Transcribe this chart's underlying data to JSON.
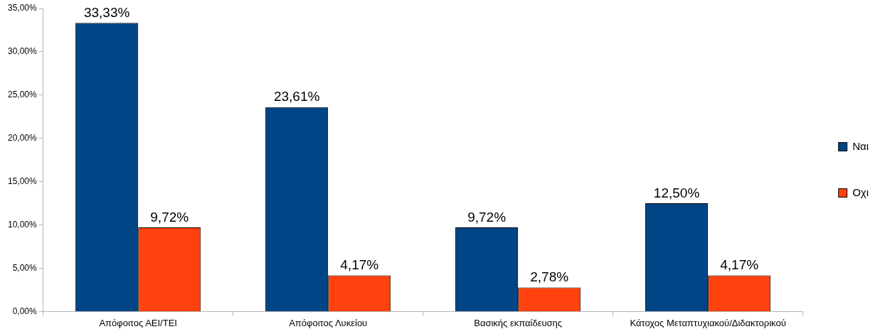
{
  "chart_data": {
    "type": "bar",
    "categories": [
      "Απόφοιτος ΑΕΙ/ΤΕΙ",
      "Απόφοιτος Λυκείου",
      "Βασικής εκπαίδευσης",
      "Κάτοχος Μεταπτυχιακού/Διδακτορικού"
    ],
    "series": [
      {
        "name": "Ναι",
        "color": "#004586",
        "values": [
          33.33,
          23.61,
          9.72,
          12.5
        ],
        "value_labels": [
          "33,33%",
          "23,61%",
          "9,72%",
          "12,50%"
        ]
      },
      {
        "name": "Οχι",
        "color": "#ff420e",
        "values": [
          9.72,
          4.17,
          2.78,
          4.17
        ],
        "value_labels": [
          "9,72%",
          "4,17%",
          "2,78%",
          "4,17%"
        ]
      }
    ],
    "ylim": [
      0,
      35
    ],
    "yticks": [
      {
        "value": 0,
        "label": "0,00%"
      },
      {
        "value": 5,
        "label": "5,00%"
      },
      {
        "value": 10,
        "label": "10,00%"
      },
      {
        "value": 15,
        "label": "15,00%"
      },
      {
        "value": 20,
        "label": "20,00%"
      },
      {
        "value": 25,
        "label": "25,00%"
      },
      {
        "value": 30,
        "label": "30,00%"
      },
      {
        "value": 35,
        "label": "35,00%"
      }
    ],
    "grid": false,
    "legend": "right"
  }
}
